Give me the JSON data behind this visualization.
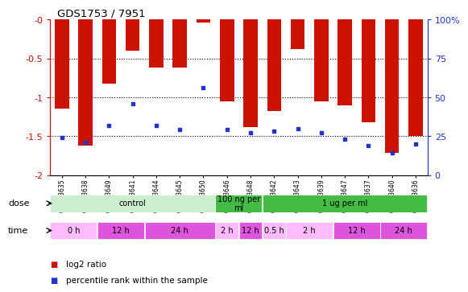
{
  "title": "GDS1753 / 7951",
  "samples": [
    "GSM93635",
    "GSM93638",
    "GSM93649",
    "GSM93641",
    "GSM93644",
    "GSM93645",
    "GSM93650",
    "GSM93646",
    "GSM93648",
    "GSM93642",
    "GSM93643",
    "GSM93639",
    "GSM93647",
    "GSM93637",
    "GSM93640",
    "GSM93636"
  ],
  "log2_ratio": [
    -1.15,
    -1.62,
    -0.82,
    -0.4,
    -0.62,
    -0.62,
    -0.04,
    -1.05,
    -1.38,
    -1.18,
    -0.38,
    -1.05,
    -1.1,
    -1.32,
    -1.72,
    -1.5
  ],
  "percentile": [
    24,
    21,
    32,
    46,
    32,
    29,
    56,
    29,
    27,
    28,
    30,
    27,
    23,
    19,
    14,
    20
  ],
  "bar_color": "#cc1100",
  "blue_color": "#2233cc",
  "ylim_left": [
    -2.0,
    0.0
  ],
  "ylim_right": [
    0,
    100
  ],
  "grid_vals": [
    -0.5,
    -1.0,
    -1.5
  ],
  "yticks_left": [
    -2.0,
    -1.5,
    -1.0,
    -0.5,
    0.0
  ],
  "ytick_labels_left": [
    "-2",
    "-1.5",
    "-1",
    "-0.5",
    "-0"
  ],
  "yticks_right": [
    0,
    25,
    50,
    75,
    100
  ],
  "ytick_labels_right": [
    "0",
    "25",
    "50",
    "75",
    "100%"
  ],
  "dose_groups": [
    {
      "label": "control",
      "start": 0,
      "end": 7,
      "color": "#cceecc"
    },
    {
      "label": "100 ng per\nml",
      "start": 7,
      "end": 9,
      "color": "#44bb44"
    },
    {
      "label": "1 ug per ml",
      "start": 9,
      "end": 16,
      "color": "#44bb44"
    }
  ],
  "time_groups": [
    {
      "label": "0 h",
      "start": 0,
      "end": 2,
      "color": "#ffbbff"
    },
    {
      "label": "12 h",
      "start": 2,
      "end": 4,
      "color": "#dd55dd"
    },
    {
      "label": "24 h",
      "start": 4,
      "end": 7,
      "color": "#dd55dd"
    },
    {
      "label": "2 h",
      "start": 7,
      "end": 8,
      "color": "#ffbbff"
    },
    {
      "label": "12 h",
      "start": 8,
      "end": 9,
      "color": "#dd55dd"
    },
    {
      "label": "0.5 h",
      "start": 9,
      "end": 10,
      "color": "#ffbbff"
    },
    {
      "label": "2 h",
      "start": 10,
      "end": 12,
      "color": "#ffbbff"
    },
    {
      "label": "12 h",
      "start": 12,
      "end": 14,
      "color": "#dd55dd"
    },
    {
      "label": "24 h",
      "start": 14,
      "end": 16,
      "color": "#dd55dd"
    }
  ],
  "legend_labels": [
    "log2 ratio",
    "percentile rank within the sample"
  ],
  "legend_colors": [
    "#cc1100",
    "#2233cc"
  ],
  "bg_color": "#ffffff",
  "red_color": "#cc1100",
  "blue_color2": "#2233cc"
}
